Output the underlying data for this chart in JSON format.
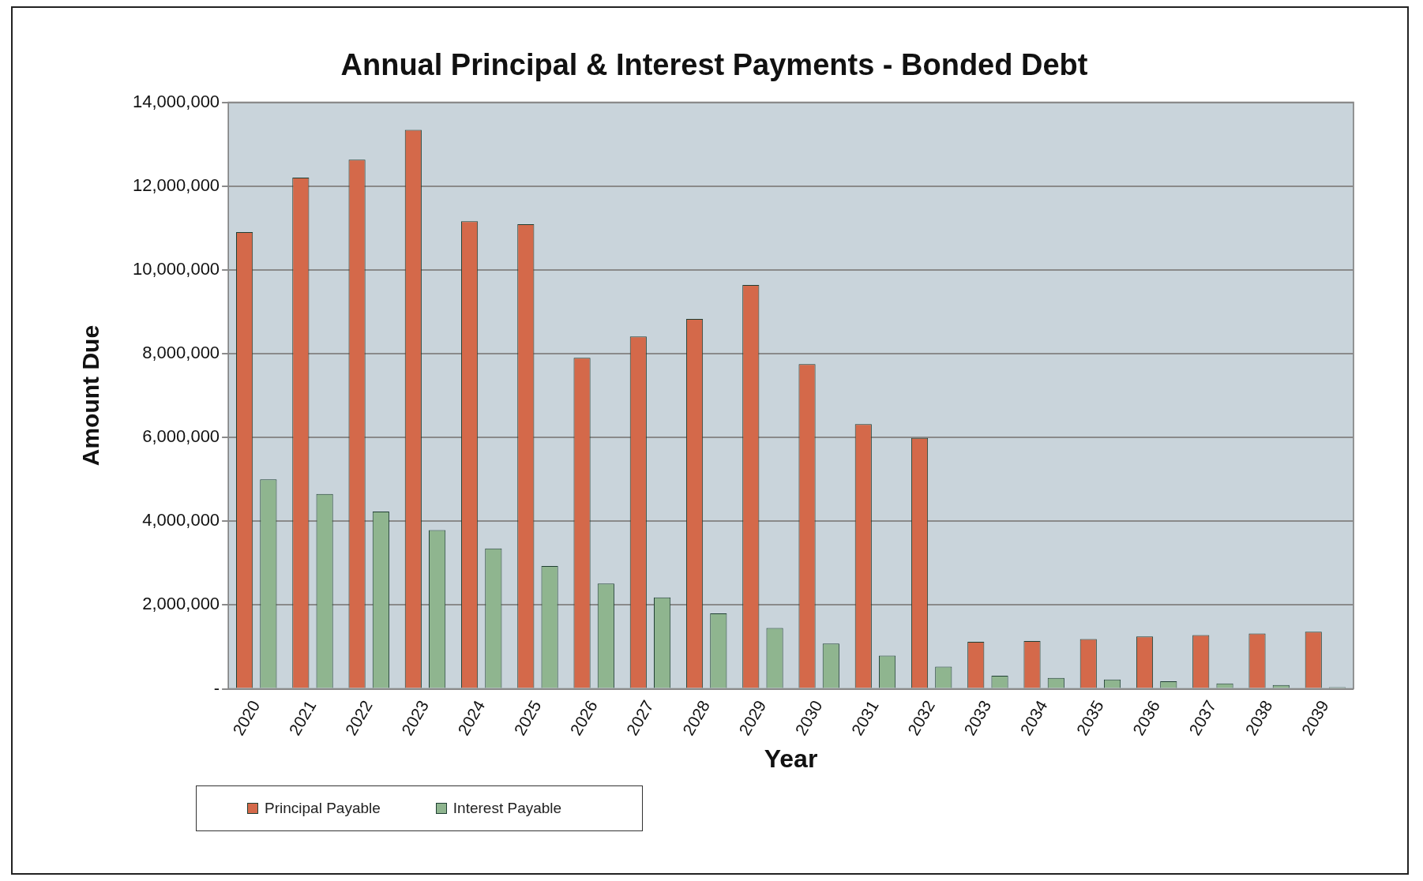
{
  "chart_data": {
    "type": "bar",
    "title": "Annual Principal & Interest Payments - Bonded Debt",
    "xlabel": "Year",
    "ylabel": "Amount Due",
    "categories": [
      "2020",
      "2021",
      "2022",
      "2023",
      "2024",
      "2025",
      "2026",
      "2027",
      "2028",
      "2029",
      "2030",
      "2031",
      "2032",
      "2033",
      "2034",
      "2035",
      "2036",
      "2037",
      "2038",
      "2039"
    ],
    "series": [
      {
        "name": "Principal Payable",
        "color": "#d4694a",
        "values": [
          10900000,
          12200000,
          12630000,
          13340000,
          11160000,
          11090000,
          7900000,
          8410000,
          8830000,
          9640000,
          7750000,
          6320000,
          5990000,
          1120000,
          1140000,
          1190000,
          1250000,
          1280000,
          1320000,
          1360000
        ]
      },
      {
        "name": "Interest Payable",
        "color": "#8fb58f",
        "values": [
          5000000,
          4650000,
          4230000,
          3790000,
          3350000,
          2930000,
          2510000,
          2180000,
          1800000,
          1450000,
          1080000,
          790000,
          530000,
          310000,
          260000,
          220000,
          180000,
          130000,
          90000,
          40000
        ]
      }
    ],
    "ylim": [
      0,
      14000000
    ],
    "yticks": [
      {
        "value": 0,
        "label": "-"
      },
      {
        "value": 2000000,
        "label": "2,000,000"
      },
      {
        "value": 4000000,
        "label": "4,000,000"
      },
      {
        "value": 6000000,
        "label": "6,000,000"
      },
      {
        "value": 8000000,
        "label": "8,000,000"
      },
      {
        "value": 10000000,
        "label": "10,000,000"
      },
      {
        "value": 12000000,
        "label": "12,000,000"
      },
      {
        "value": 14000000,
        "label": "14,000,000"
      }
    ],
    "grid": "y",
    "legend": "bottom left"
  }
}
